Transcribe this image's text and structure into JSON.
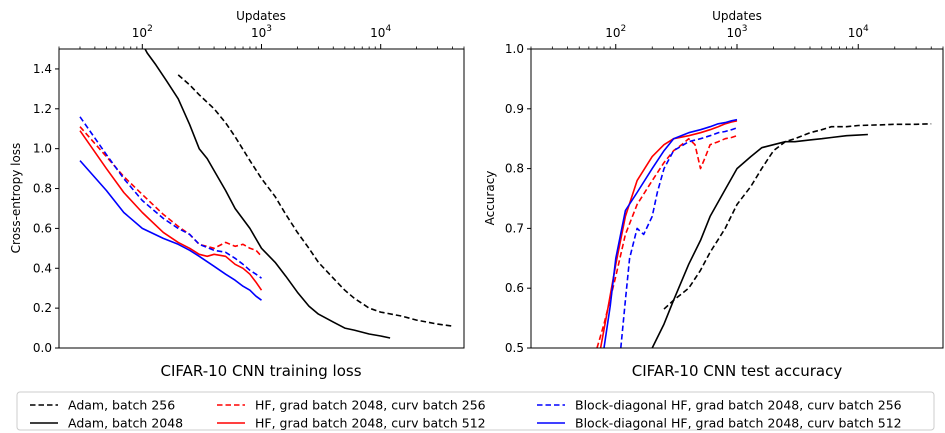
{
  "chart_data": [
    {
      "type": "line",
      "caption": "CIFAR-10 CNN training loss",
      "ylabel": "Cross-entropy loss",
      "top_xlabel": "Updates",
      "top_x_scale": "log",
      "top_xlim": [
        20,
        50000
      ],
      "top_ticks": [
        {
          "value": 100,
          "base": "10",
          "exp": "2"
        },
        {
          "value": 1000,
          "base": "10",
          "exp": "3"
        },
        {
          "value": 10000,
          "base": "10",
          "exp": "4"
        }
      ],
      "ylim": [
        0,
        1.5
      ],
      "yticks": [
        "0.0",
        "0.2",
        "0.4",
        "0.6",
        "0.8",
        "1.0",
        "1.2",
        "1.4"
      ],
      "series": [
        {
          "name": "Adam, batch 256",
          "color": "#000000",
          "dash": "dashed",
          "x": [
            200,
            250,
            300,
            400,
            500,
            600,
            800,
            1000,
            1300,
            1600,
            2000,
            2500,
            3000,
            4000,
            5000,
            6000,
            8000,
            10000,
            15000,
            20000,
            30000,
            40000
          ],
          "y": [
            1.37,
            1.32,
            1.27,
            1.2,
            1.13,
            1.06,
            0.94,
            0.85,
            0.76,
            0.67,
            0.58,
            0.5,
            0.43,
            0.35,
            0.29,
            0.25,
            0.2,
            0.18,
            0.16,
            0.14,
            0.12,
            0.11
          ]
        },
        {
          "name": "Adam, batch 2048",
          "color": "#000000",
          "dash": "solid",
          "x": [
            95,
            110,
            130,
            160,
            200,
            250,
            300,
            350,
            400,
            500,
            600,
            800,
            1000,
            1300,
            1600,
            2000,
            2500,
            3000,
            4000,
            5000,
            6000,
            8000,
            10000,
            12000
          ],
          "y": [
            1.55,
            1.48,
            1.42,
            1.34,
            1.25,
            1.12,
            1.0,
            0.95,
            0.89,
            0.79,
            0.7,
            0.6,
            0.5,
            0.43,
            0.36,
            0.28,
            0.21,
            0.17,
            0.13,
            0.1,
            0.09,
            0.07,
            0.06,
            0.05
          ]
        },
        {
          "name": "HF, grad batch 2048, curv batch 256",
          "color": "#ff0000",
          "dash": "dashed",
          "x": [
            30,
            50,
            70,
            100,
            150,
            200,
            250,
            300,
            400,
            500,
            600,
            700,
            800,
            900,
            1000
          ],
          "y": [
            1.11,
            0.96,
            0.86,
            0.77,
            0.67,
            0.61,
            0.57,
            0.52,
            0.5,
            0.53,
            0.51,
            0.52,
            0.5,
            0.49,
            0.46
          ]
        },
        {
          "name": "HF, grad batch 2048, curv batch 512",
          "color": "#ff0000",
          "dash": "solid",
          "x": [
            30,
            50,
            70,
            100,
            150,
            200,
            250,
            300,
            350,
            400,
            500,
            600,
            700,
            800,
            900,
            1000
          ],
          "y": [
            1.09,
            0.9,
            0.78,
            0.68,
            0.58,
            0.53,
            0.5,
            0.47,
            0.46,
            0.47,
            0.46,
            0.42,
            0.4,
            0.37,
            0.33,
            0.29
          ]
        },
        {
          "name": "Block-diagonal HF, grad batch 2048, curv batch 256",
          "color": "#0000ff",
          "dash": "dashed",
          "x": [
            30,
            50,
            70,
            100,
            150,
            200,
            250,
            300,
            400,
            500,
            600,
            700,
            800,
            900,
            1000
          ],
          "y": [
            1.16,
            0.97,
            0.85,
            0.74,
            0.65,
            0.6,
            0.57,
            0.52,
            0.49,
            0.48,
            0.45,
            0.42,
            0.39,
            0.37,
            0.35
          ]
        },
        {
          "name": "Block-diagonal HF, grad batch 2048, curv batch 512",
          "color": "#0000ff",
          "dash": "solid",
          "x": [
            30,
            50,
            70,
            100,
            150,
            200,
            250,
            300,
            400,
            500,
            600,
            700,
            800,
            900,
            1000
          ],
          "y": [
            0.94,
            0.79,
            0.68,
            0.6,
            0.55,
            0.52,
            0.49,
            0.46,
            0.41,
            0.37,
            0.34,
            0.31,
            0.29,
            0.26,
            0.24
          ]
        }
      ]
    },
    {
      "type": "line",
      "caption": "CIFAR-10 CNN test accuracy",
      "ylabel": "Accuracy",
      "top_xlabel": "Updates",
      "top_x_scale": "log",
      "top_xlim": [
        20,
        50000
      ],
      "top_ticks": [
        {
          "value": 100,
          "base": "10",
          "exp": "2"
        },
        {
          "value": 1000,
          "base": "10",
          "exp": "3"
        },
        {
          "value": 10000,
          "base": "10",
          "exp": "4"
        }
      ],
      "ylim": [
        0.5,
        1.0
      ],
      "yticks": [
        "0.5",
        "0.6",
        "0.7",
        "0.8",
        "0.9",
        "1.0"
      ],
      "series": [
        {
          "name": "Adam, batch 256",
          "color": "#000000",
          "dash": "dashed",
          "x": [
            250,
            300,
            400,
            500,
            600,
            800,
            1000,
            1300,
            1600,
            2000,
            2500,
            3000,
            4000,
            5000,
            6000,
            8000,
            10000,
            15000,
            20000,
            30000,
            40000
          ],
          "y": [
            0.565,
            0.58,
            0.6,
            0.63,
            0.66,
            0.7,
            0.74,
            0.77,
            0.8,
            0.83,
            0.845,
            0.85,
            0.86,
            0.865,
            0.87,
            0.87,
            0.872,
            0.873,
            0.874,
            0.874,
            0.875
          ]
        },
        {
          "name": "Adam, batch 2048",
          "color": "#000000",
          "dash": "solid",
          "x": [
            200,
            250,
            300,
            400,
            500,
            600,
            800,
            1000,
            1300,
            1600,
            2000,
            2500,
            3000,
            4000,
            5000,
            6000,
            8000,
            10000,
            12000
          ],
          "y": [
            0.5,
            0.54,
            0.58,
            0.64,
            0.68,
            0.72,
            0.765,
            0.8,
            0.82,
            0.835,
            0.84,
            0.845,
            0.845,
            0.848,
            0.85,
            0.852,
            0.855,
            0.856,
            0.857
          ]
        },
        {
          "name": "HF, grad batch 2048, curv batch 256",
          "color": "#ff0000",
          "dash": "dashed",
          "x": [
            70,
            80,
            100,
            120,
            150,
            200,
            250,
            300,
            350,
            400,
            450,
            500,
            550,
            600,
            700,
            800,
            900,
            1000
          ],
          "y": [
            0.5,
            0.54,
            0.62,
            0.69,
            0.74,
            0.78,
            0.81,
            0.83,
            0.84,
            0.85,
            0.84,
            0.8,
            0.82,
            0.84,
            0.845,
            0.85,
            0.852,
            0.855
          ]
        },
        {
          "name": "HF, grad batch 2048, curv batch 512",
          "color": "#ff0000",
          "dash": "solid",
          "x": [
            75,
            85,
            100,
            120,
            150,
            200,
            250,
            300,
            400,
            500,
            600,
            700,
            800,
            900,
            1000
          ],
          "y": [
            0.5,
            0.56,
            0.64,
            0.72,
            0.78,
            0.82,
            0.84,
            0.85,
            0.855,
            0.86,
            0.865,
            0.87,
            0.875,
            0.878,
            0.88
          ]
        },
        {
          "name": "Block-diagonal HF, grad batch 2048, curv batch 256",
          "color": "#0000ff",
          "dash": "dashed",
          "x": [
            110,
            120,
            130,
            150,
            170,
            200,
            220,
            250,
            300,
            400,
            500,
            600,
            700,
            800,
            900,
            1000
          ],
          "y": [
            0.5,
            0.58,
            0.65,
            0.7,
            0.69,
            0.72,
            0.76,
            0.8,
            0.83,
            0.845,
            0.85,
            0.855,
            0.86,
            0.862,
            0.865,
            0.868
          ]
        },
        {
          "name": "Block-diagonal HF, grad batch 2048, curv batch 512",
          "color": "#0000ff",
          "dash": "solid",
          "x": [
            80,
            90,
            100,
            120,
            150,
            200,
            250,
            300,
            400,
            500,
            600,
            700,
            800,
            900,
            1000
          ],
          "y": [
            0.5,
            0.57,
            0.65,
            0.73,
            0.76,
            0.8,
            0.83,
            0.85,
            0.86,
            0.865,
            0.87,
            0.875,
            0.877,
            0.88,
            0.882
          ]
        }
      ]
    }
  ],
  "legend": {
    "placement": "bottom",
    "entries": [
      {
        "label": "Adam, batch 256",
        "color": "#000000",
        "dash": "dashed"
      },
      {
        "label": "HF, grad batch 2048, curv batch 256",
        "color": "#ff0000",
        "dash": "dashed"
      },
      {
        "label": "Block-diagonal HF, grad batch 2048, curv batch 256",
        "color": "#0000ff",
        "dash": "dashed"
      },
      {
        "label": "Adam, batch 2048",
        "color": "#000000",
        "dash": "solid"
      },
      {
        "label": "HF, grad batch 2048, curv batch 512",
        "color": "#ff0000",
        "dash": "solid"
      },
      {
        "label": "Block-diagonal HF, grad batch 2048, curv batch 512",
        "color": "#0000ff",
        "dash": "solid"
      }
    ]
  }
}
